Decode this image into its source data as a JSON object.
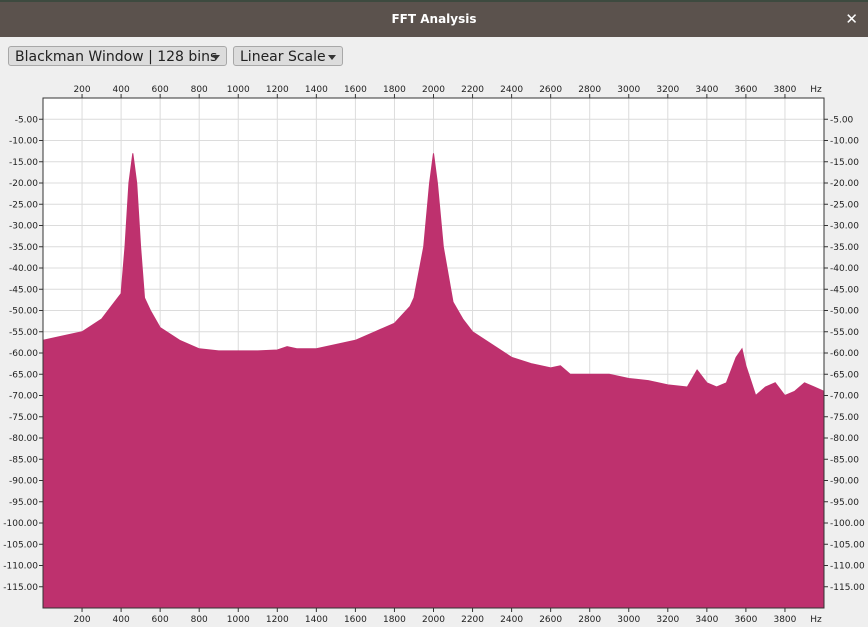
{
  "window": {
    "title": "FFT Analysis",
    "close_symbol": "✕"
  },
  "controls": {
    "window_function": "Blackman Window | 128 bins",
    "scale": "Linear Scale"
  },
  "colors": {
    "spectrum_fill": "#be316e",
    "titlebar": "#5b524d",
    "grid": "#dcdcdc"
  },
  "chart_data": {
    "type": "area",
    "x_unit": "Hz",
    "x_ticks": [
      200,
      400,
      600,
      800,
      1000,
      1200,
      1400,
      1600,
      1800,
      2000,
      2200,
      2400,
      2600,
      2800,
      3000,
      3200,
      3400,
      3600,
      3800
    ],
    "y_ticks": [
      "-5.00",
      "-10.00",
      "-15.00",
      "-20.00",
      "-25.00",
      "-30.00",
      "-35.00",
      "-40.00",
      "-45.00",
      "-50.00",
      "-55.00",
      "-60.00",
      "-65.00",
      "-70.00",
      "-75.00",
      "-80.00",
      "-85.00",
      "-90.00",
      "-95.00",
      "-100.00",
      "-105.00",
      "-110.00",
      "-115.00"
    ],
    "xlim": [
      0,
      4000
    ],
    "ylim": [
      -120,
      0
    ],
    "grid": true,
    "x": [
      0,
      100,
      200,
      300,
      350,
      400,
      420,
      440,
      460,
      480,
      500,
      520,
      550,
      600,
      700,
      800,
      900,
      1000,
      1100,
      1200,
      1250,
      1300,
      1350,
      1400,
      1500,
      1600,
      1700,
      1800,
      1880,
      1900,
      1950,
      1980,
      2000,
      2020,
      2050,
      2100,
      2150,
      2200,
      2300,
      2400,
      2500,
      2600,
      2650,
      2700,
      2800,
      2900,
      3000,
      3100,
      3200,
      3300,
      3350,
      3400,
      3450,
      3500,
      3550,
      3580,
      3600,
      3650,
      3700,
      3750,
      3800,
      3850,
      3900,
      3950,
      4000
    ],
    "y": [
      -57,
      -56,
      -55,
      -52,
      -49,
      -46,
      -35,
      -20,
      -13,
      -20,
      -35,
      -47,
      -50,
      -54,
      -57,
      -59,
      -59.5,
      -59.5,
      -59.5,
      -59.3,
      -58.5,
      -59,
      -59,
      -59,
      -58,
      -57,
      -55,
      -53,
      -49,
      -47,
      -35,
      -20,
      -13,
      -20,
      -35,
      -48,
      -52,
      -55,
      -58,
      -61,
      -62.5,
      -63.5,
      -63,
      -65,
      -65,
      -65,
      -66,
      -66.5,
      -67.5,
      -68,
      -64,
      -67,
      -68,
      -67,
      -61,
      -59,
      -63,
      -70,
      -68,
      -67,
      -70,
      -69,
      -67,
      -68,
      -69
    ]
  }
}
